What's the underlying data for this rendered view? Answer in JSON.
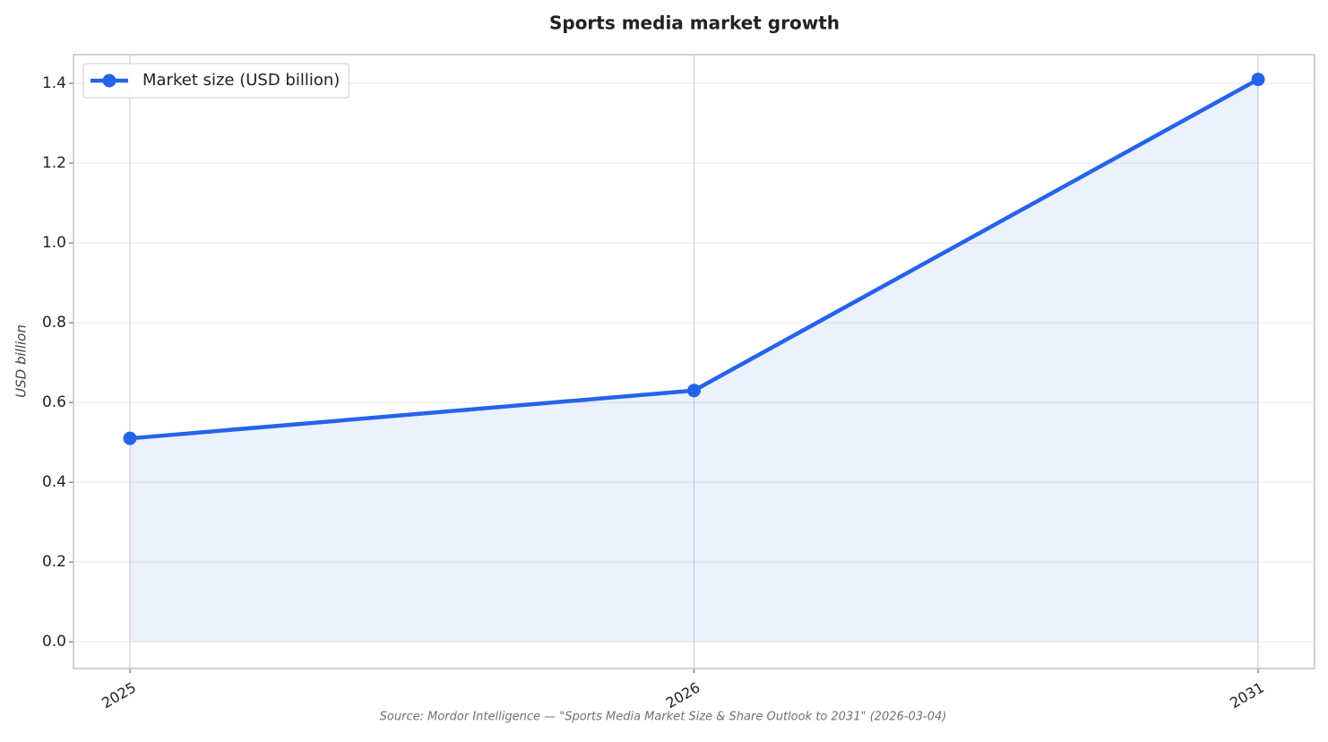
{
  "chart_data": {
    "type": "line",
    "title": "Sports media market growth",
    "y_label": "USD billion",
    "source": "Source: Mordor Intelligence — \"Sports Media Market Size & Share Outlook to 2031\" (2026-03-04)",
    "categories": [
      "2025",
      "2026",
      "2031"
    ],
    "series": [
      {
        "name": "Market size (USD billion)",
        "color": "#2563eb",
        "values": [
          0.51,
          0.63,
          1.41
        ]
      }
    ],
    "ylim": [
      -0.067,
      1.472
    ],
    "yticks": [
      {
        "value": 0,
        "label": "0.0"
      },
      0.2,
      0.4,
      0.6,
      0.8,
      {
        "value": 1,
        "label": "1.0"
      },
      1.2,
      1.4
    ],
    "grid": true,
    "area_fill": true,
    "legend": "upper-left"
  }
}
